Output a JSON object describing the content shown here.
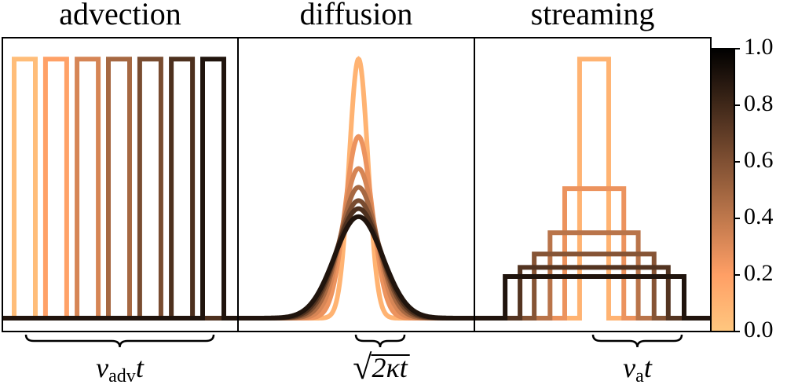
{
  "chart_data": [
    {
      "type": "step",
      "title": "advection",
      "annotation": {
        "symbol": "v",
        "subscript": "adv",
        "suffix": "t"
      },
      "xlim": [
        0,
        10
      ],
      "ylim": [
        -0.05,
        1.05
      ],
      "series": [
        {
          "color": "#ffbd79",
          "x": [
            0,
            0.5,
            0.5,
            1.4,
            1.4,
            10
          ],
          "values": [
            0,
            0,
            0.97,
            0.97,
            0,
            0
          ]
        },
        {
          "color": "#ffa167",
          "x": [
            0,
            1.83,
            1.83,
            2.73,
            2.73,
            10
          ],
          "values": [
            0,
            0,
            0.97,
            0.97,
            0,
            0
          ]
        },
        {
          "color": "#d68555",
          "x": [
            0,
            3.17,
            3.17,
            4.07,
            4.07,
            10
          ],
          "values": [
            0,
            0,
            0.97,
            0.97,
            0,
            0
          ]
        },
        {
          "color": "#a66842",
          "x": [
            0,
            4.5,
            4.5,
            5.4,
            5.4,
            10
          ],
          "values": [
            0,
            0,
            0.97,
            0.97,
            0,
            0
          ]
        },
        {
          "color": "#794c30",
          "x": [
            0,
            5.83,
            5.83,
            6.73,
            6.73,
            10
          ],
          "values": [
            0,
            0,
            0.97,
            0.97,
            0,
            0
          ]
        },
        {
          "color": "#4d301e",
          "x": [
            0,
            7.17,
            7.17,
            8.07,
            8.07,
            10
          ],
          "values": [
            0,
            0,
            0.97,
            0.97,
            0,
            0
          ]
        },
        {
          "color": "#20140d",
          "x": [
            0,
            8.5,
            8.5,
            9.4,
            9.4,
            10
          ],
          "values": [
            0,
            0,
            0.97,
            0.97,
            0,
            0
          ]
        }
      ]
    },
    {
      "type": "gaussian",
      "title": "diffusion",
      "annotation": {
        "radical": "√",
        "radicand": "2κt"
      },
      "xlim": [
        0,
        10
      ],
      "ylim": [
        -0.05,
        1.05
      ],
      "series": [
        {
          "color": "#ffb372",
          "center": 5.1,
          "peak": 0.97,
          "sigma": 0.4
        },
        {
          "color": "#ec935e",
          "center": 5.1,
          "peak": 0.68,
          "sigma": 0.57
        },
        {
          "color": "#d68555",
          "center": 5.1,
          "peak": 0.56,
          "sigma": 0.69
        },
        {
          "color": "#a66842",
          "center": 5.1,
          "peak": 0.49,
          "sigma": 0.79
        },
        {
          "color": "#794c30",
          "center": 5.1,
          "peak": 0.44,
          "sigma": 0.88
        },
        {
          "color": "#4d301e",
          "center": 5.1,
          "peak": 0.41,
          "sigma": 0.95
        },
        {
          "color": "#20140d",
          "center": 5.1,
          "peak": 0.38,
          "sigma": 1.02
        }
      ]
    },
    {
      "type": "step",
      "title": "streaming",
      "annotation": {
        "symbol": "v",
        "subscript": "a",
        "suffix": "t"
      },
      "xlim": [
        0,
        10
      ],
      "ylim": [
        -0.05,
        1.05
      ],
      "series": [
        {
          "color": "#ffb372",
          "x": [
            0,
            4.45,
            4.45,
            5.68,
            5.68,
            10
          ],
          "values": [
            0,
            0,
            0.97,
            0.97,
            0,
            0
          ]
        },
        {
          "color": "#ec935e",
          "x": [
            0,
            3.82,
            3.82,
            6.32,
            6.32,
            10
          ],
          "values": [
            0,
            0,
            0.485,
            0.485,
            0,
            0
          ]
        },
        {
          "color": "#b9744a",
          "x": [
            0,
            3.2,
            3.2,
            6.93,
            6.93,
            10
          ],
          "values": [
            0,
            0,
            0.32,
            0.32,
            0,
            0
          ]
        },
        {
          "color": "#865435",
          "x": [
            0,
            2.53,
            2.53,
            7.6,
            7.6,
            10
          ],
          "values": [
            0,
            0,
            0.24,
            0.24,
            0,
            0
          ]
        },
        {
          "color": "#533421",
          "x": [
            0,
            1.93,
            1.93,
            8.2,
            8.2,
            10
          ],
          "values": [
            0,
            0,
            0.19,
            0.19,
            0,
            0
          ]
        },
        {
          "color": "#20140d",
          "x": [
            0,
            1.3,
            1.3,
            8.87,
            8.87,
            10
          ],
          "values": [
            0,
            0,
            0.156,
            0.156,
            0,
            0
          ]
        }
      ]
    },
    {
      "type": "colorbar",
      "colormap": "copper_r",
      "ylim": [
        0,
        1
      ],
      "yticks": [
        {
          "value": 0,
          "label": "0.0"
        },
        {
          "value": 0.2,
          "label": "0.2"
        },
        {
          "value": 0.4,
          "label": "0.4"
        },
        {
          "value": 0.6,
          "label": "0.6"
        },
        {
          "value": 0.8,
          "label": "0.8"
        },
        {
          "value": 1,
          "label": "1.0"
        }
      ]
    }
  ]
}
